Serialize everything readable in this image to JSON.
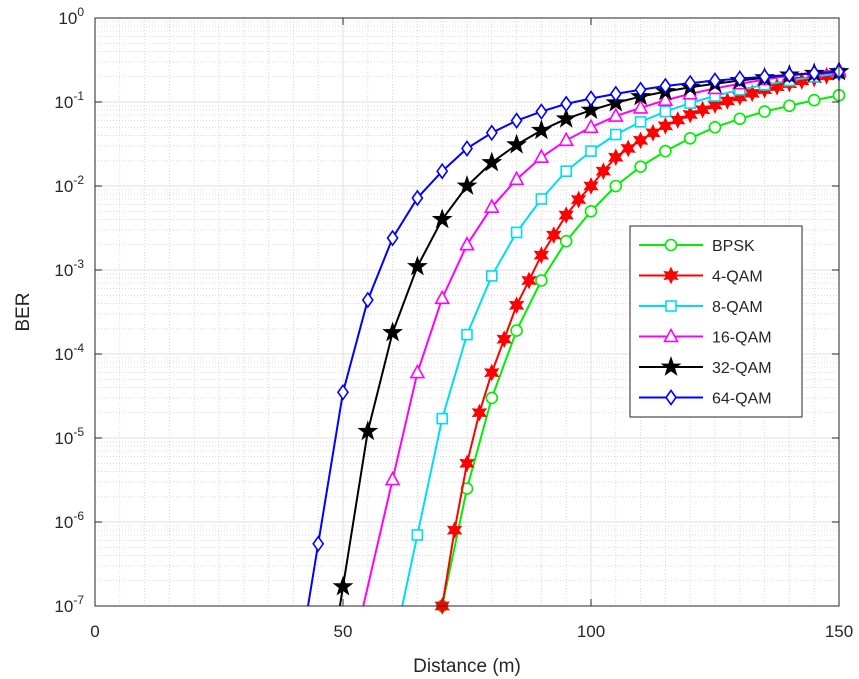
{
  "chart_data": {
    "type": "line",
    "xlabel": "Distance (m)",
    "ylabel": "BER",
    "x_scale": "linear",
    "y_scale": "log",
    "xlim": [
      0,
      150
    ],
    "ylim": [
      1e-07,
      1
    ],
    "x_ticks": [
      "0",
      "50",
      "100",
      "150"
    ],
    "y_ticks": [
      {
        "base": "10",
        "exp": "0"
      },
      {
        "base": "10",
        "exp": "-1"
      },
      {
        "base": "10",
        "exp": "-2"
      },
      {
        "base": "10",
        "exp": "-3"
      },
      {
        "base": "10",
        "exp": "-4"
      },
      {
        "base": "10",
        "exp": "-5"
      },
      {
        "base": "10",
        "exp": "-6"
      },
      {
        "base": "10",
        "exp": "-7"
      }
    ],
    "grid": true,
    "minor_grid": true,
    "legend_position": "right-center",
    "series": [
      {
        "name": "BPSK",
        "color": "#00ee00",
        "marker": "circle",
        "x": [
          70,
          75,
          80,
          85,
          90,
          95,
          100,
          105,
          110,
          115,
          120,
          125,
          130,
          135,
          140,
          145,
          150
        ],
        "y": [
          1e-07,
          2.5e-06,
          3e-05,
          0.00019,
          0.00075,
          0.0022,
          0.005,
          0.01,
          0.017,
          0.026,
          0.037,
          0.05,
          0.063,
          0.077,
          0.09,
          0.105,
          0.12
        ]
      },
      {
        "name": "4-QAM",
        "color": "#ff0000",
        "marker": "hexagram",
        "x": [
          70,
          72.5,
          75,
          77.5,
          80,
          82.5,
          85,
          87.5,
          90,
          92.5,
          95,
          97.5,
          100,
          102.5,
          105,
          107.5,
          110,
          112.5,
          115,
          117.5,
          120,
          122.5,
          125,
          127.5,
          130,
          132.5,
          135,
          137.5,
          140,
          142.5,
          145,
          147.5,
          150
        ],
        "y": [
          1e-07,
          8e-07,
          5e-06,
          2e-05,
          6e-05,
          0.00015,
          0.00038,
          0.00075,
          0.0015,
          0.0026,
          0.0045,
          0.0069,
          0.01,
          0.015,
          0.022,
          0.028,
          0.035,
          0.043,
          0.052,
          0.061,
          0.071,
          0.081,
          0.092,
          0.103,
          0.115,
          0.127,
          0.14,
          0.152,
          0.165,
          0.178,
          0.19,
          0.205,
          0.22
        ]
      },
      {
        "name": "8-QAM",
        "color": "#00ddee",
        "marker": "square",
        "x": [
          65,
          70,
          75,
          80,
          85,
          90,
          95,
          100,
          105,
          110,
          115,
          120,
          125,
          130,
          135,
          140,
          145,
          150
        ],
        "y": [
          7e-07,
          1.7e-05,
          0.00017,
          0.00085,
          0.0028,
          0.007,
          0.015,
          0.026,
          0.041,
          0.058,
          0.077,
          0.097,
          0.118,
          0.14,
          0.16,
          0.18,
          0.2,
          0.22
        ]
      },
      {
        "name": "16-QAM",
        "color": "#ff00ff",
        "marker": "triangle",
        "x": [
          60,
          65,
          70,
          75,
          80,
          85,
          90,
          95,
          100,
          105,
          110,
          115,
          120,
          125,
          130,
          135,
          140,
          145,
          150
        ],
        "y": [
          3.2e-06,
          6e-05,
          0.00046,
          0.002,
          0.0056,
          0.012,
          0.022,
          0.035,
          0.05,
          0.068,
          0.085,
          0.105,
          0.125,
          0.145,
          0.165,
          0.185,
          0.205,
          0.225,
          0.24
        ]
      },
      {
        "name": "32-QAM",
        "color": "#000000",
        "marker": "pentagram",
        "x": [
          50,
          55,
          60,
          65,
          70,
          75,
          80,
          85,
          90,
          95,
          100,
          105,
          110,
          115,
          120,
          125,
          130,
          135,
          140,
          145,
          150
        ],
        "y": [
          1.7e-07,
          1.2e-05,
          0.00018,
          0.0011,
          0.004,
          0.01,
          0.019,
          0.031,
          0.046,
          0.063,
          0.08,
          0.098,
          0.116,
          0.133,
          0.15,
          0.165,
          0.18,
          0.195,
          0.21,
          0.22,
          0.23
        ]
      },
      {
        "name": "64-QAM",
        "color": "#0000ff",
        "marker": "diamond",
        "x": [
          45,
          50,
          55,
          60,
          65,
          70,
          75,
          80,
          85,
          90,
          95,
          100,
          105,
          110,
          115,
          120,
          125,
          130,
          135,
          140,
          145,
          150
        ],
        "y": [
          5.5e-07,
          3.5e-05,
          0.00044,
          0.0024,
          0.0072,
          0.015,
          0.028,
          0.043,
          0.06,
          0.077,
          0.095,
          0.11,
          0.125,
          0.14,
          0.155,
          0.168,
          0.18,
          0.19,
          0.2,
          0.21,
          0.22,
          0.23
        ]
      }
    ]
  }
}
